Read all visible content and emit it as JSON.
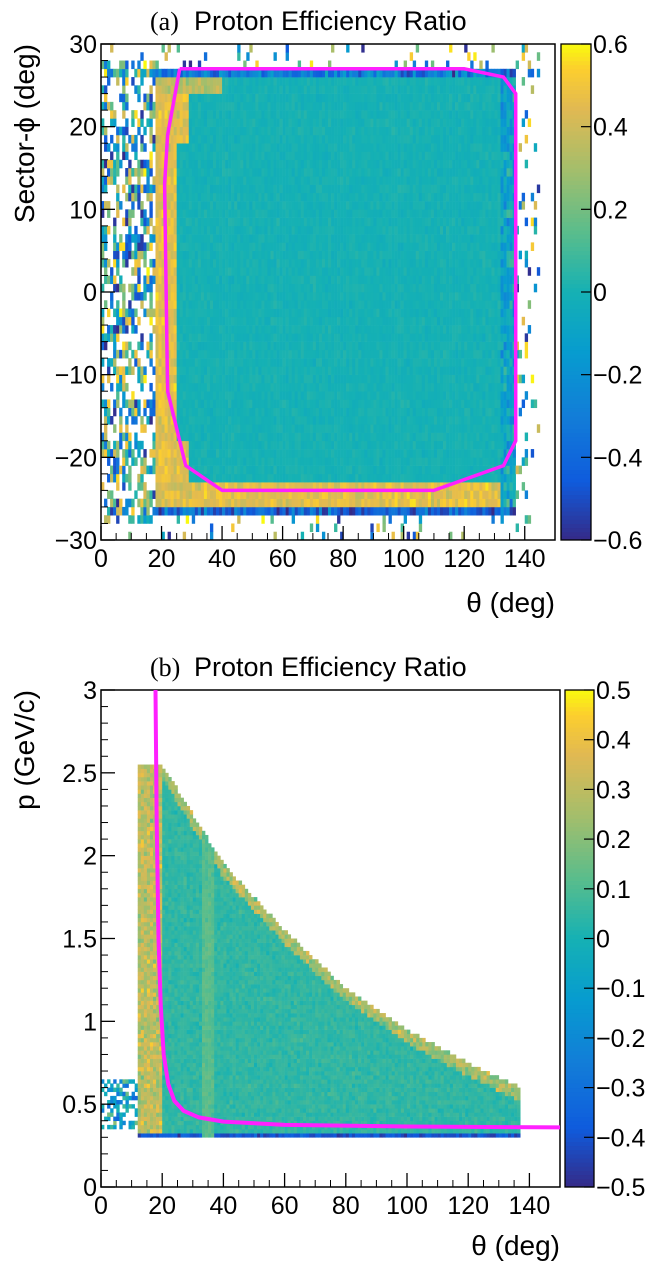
{
  "chart_data": [
    {
      "type": "heatmap",
      "panel_tag": "(a)",
      "title": "Proton Efficiency Ratio",
      "xlabel": "θ (deg)",
      "ylabel": "Sector-ϕ (deg)",
      "xlim": [
        0,
        150
      ],
      "ylim": [
        -30,
        30
      ],
      "x_ticks": [
        0,
        20,
        40,
        60,
        80,
        100,
        120,
        140
      ],
      "x_tick_labels": [
        "0",
        "20",
        "40",
        "60",
        "80",
        "100",
        "120",
        "140"
      ],
      "y_ticks": [
        -30,
        -20,
        -10,
        0,
        10,
        20,
        30
      ],
      "y_tick_labels": [
        "−30",
        "−20",
        "−10",
        "0",
        "10",
        "20",
        "30"
      ],
      "z_range": [
        -0.6,
        0.6
      ],
      "colorbar_ticks": [
        -0.6,
        -0.4,
        -0.2,
        0,
        0.2,
        0.4,
        0.6
      ],
      "colorbar_tick_labels": [
        "−0.6",
        "−0.4",
        "−0.2",
        "0",
        "0.2",
        "0.4",
        "0.6"
      ],
      "colormap": "parula",
      "grid": false,
      "overlay_curve": {
        "color": "#ff20ff",
        "points": [
          [
            26,
            27
          ],
          [
            120,
            27
          ],
          [
            133,
            26
          ],
          [
            137,
            24
          ],
          [
            137,
            -18
          ],
          [
            133,
            -21
          ],
          [
            110,
            -24
          ],
          [
            40,
            -24
          ],
          [
            28,
            -21
          ],
          [
            22,
            -12
          ],
          [
            21,
            13
          ],
          [
            22,
            19
          ],
          [
            26,
            27
          ]
        ]
      },
      "regions": {
        "detector_fiducial_box": {
          "theta": [
            18,
            137
          ],
          "phi": [
            -27,
            27
          ],
          "typical_value": 0.0
        },
        "high_edge_band_theta_low": {
          "theta": [
            18,
            25
          ],
          "value": 0.45
        },
        "high_edge_band_phi_low": {
          "phi": [
            -27,
            -23
          ],
          "value": 0.45
        },
        "sparse_noise_region": {
          "theta": [
            0,
            18
          ],
          "value_range": [
            -0.6,
            0.6
          ]
        }
      }
    },
    {
      "type": "heatmap",
      "panel_tag": "(b)",
      "title": "Proton Efficiency Ratio",
      "xlabel": "θ (deg)",
      "ylabel": "p (GeV/c)",
      "xlim": [
        0,
        150
      ],
      "ylim": [
        0,
        3
      ],
      "x_ticks": [
        0,
        20,
        40,
        60,
        80,
        100,
        120,
        140
      ],
      "x_tick_labels": [
        "0",
        "20",
        "40",
        "60",
        "80",
        "100",
        "120",
        "140"
      ],
      "y_ticks": [
        0,
        0.5,
        1,
        1.5,
        2,
        2.5,
        3
      ],
      "y_tick_labels": [
        "0",
        "0.5",
        "1",
        "1.5",
        "2",
        "2.5",
        "3"
      ],
      "z_range": [
        -0.5,
        0.5
      ],
      "colorbar_ticks": [
        -0.5,
        -0.4,
        -0.3,
        -0.2,
        -0.1,
        0,
        0.1,
        0.2,
        0.3,
        0.4,
        0.5
      ],
      "colorbar_tick_labels": [
        "−0.5",
        "−0.4",
        "−0.3",
        "−0.2",
        "−0.1",
        "0",
        "0.1",
        "0.2",
        "0.3",
        "0.4",
        "0.5"
      ],
      "colormap": "parula",
      "grid": false,
      "overlay_curve": {
        "color": "#ff20ff",
        "points": [
          [
            17.8,
            3.0
          ],
          [
            18.2,
            2.2
          ],
          [
            18.8,
            1.5
          ],
          [
            19.5,
            1.1
          ],
          [
            20.5,
            0.8
          ],
          [
            22,
            0.62
          ],
          [
            24,
            0.52
          ],
          [
            27,
            0.46
          ],
          [
            32,
            0.42
          ],
          [
            40,
            0.395
          ],
          [
            60,
            0.375
          ],
          [
            100,
            0.365
          ],
          [
            150,
            0.36
          ]
        ]
      },
      "regions": {
        "data_envelope_upper": [
          [
            12,
            2.55
          ],
          [
            20,
            2.55
          ],
          [
            40,
            1.95
          ],
          [
            60,
            1.55
          ],
          [
            80,
            1.2
          ],
          [
            100,
            0.95
          ],
          [
            120,
            0.75
          ],
          [
            137,
            0.6
          ]
        ],
        "data_floor_p": 0.3,
        "theta_min": 12,
        "theta_max": 137,
        "low_theta_cluster": {
          "theta": [
            0,
            15
          ],
          "p": [
            0.35,
            0.65
          ]
        }
      }
    }
  ]
}
